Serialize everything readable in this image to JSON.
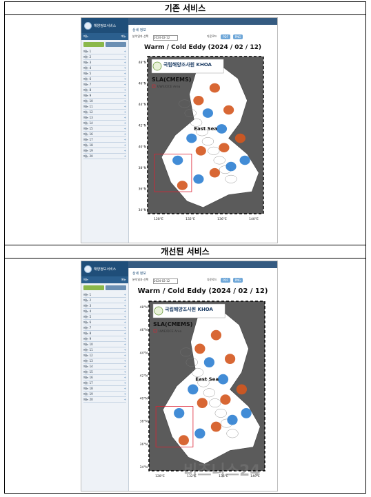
{
  "sections": [
    {
      "header": "기존 서비스",
      "ui": {
        "title": "상세 정보",
        "filter_label": "분석일자 선택",
        "filter_value": "2024-02-12",
        "view_label": "다운로드",
        "btn1": "PDF",
        "btn2": "PNG",
        "sidebar_menu": [
          "메뉴 1",
          "메뉴 2",
          "메뉴 3",
          "메뉴 4",
          "메뉴 5",
          "메뉴 6",
          "메뉴 7",
          "메뉴 8",
          "메뉴 9",
          "메뉴 10",
          "메뉴 11",
          "메뉴 12",
          "메뉴 13",
          "메뉴 14",
          "메뉴 15",
          "메뉴 16",
          "메뉴 17",
          "메뉴 18",
          "메뉴 19",
          "메뉴 20"
        ]
      },
      "map": {
        "title": "Warm / Cold Eddy (2024 / 02 / 12)",
        "agency_kr": "국립해양조사원",
        "agency_en": "KHOA",
        "product": "SLA(CMEMS)",
        "legend": "UWE/DCE Area",
        "sea_label": "East Sea",
        "lat_ticks": [
          "48°N",
          "46°N",
          "44°N",
          "42°N",
          "40°N",
          "38°N",
          "36°N",
          "34°N"
        ],
        "lon_ticks": [
          "128°E",
          "132°E",
          "136°E",
          "140°E"
        ]
      }
    },
    {
      "header": "개선된 서비스",
      "ui": {
        "title": "상세 정보",
        "filter_label": "분석일자 선택",
        "filter_value": "2024-02-12",
        "view_label": "다운로드",
        "btn1": "PDF",
        "btn2": "PNG"
      },
      "map": {
        "title": "Warm / Cold Eddy (2024 / 02 / 12)",
        "agency_kr": "국립해양조사원",
        "agency_en": "KHOA",
        "product": "SLA(CMEMS)",
        "legend": "UWE/DCE Area",
        "sea_label": "East Sea",
        "lat_ticks": [
          "48°N",
          "46°N",
          "44°N",
          "42°N",
          "40°N",
          "38°N",
          "36°N",
          "34°N"
        ],
        "lon_ticks": [
          "128°E",
          "132°E",
          "136°E",
          "140°E"
        ]
      },
      "watermark": "비즈니스24"
    }
  ],
  "colors": {
    "warm": "#d4571e",
    "cold": "#2e7fd1",
    "land": "#5b5b5b",
    "sea": "#ffffff"
  }
}
